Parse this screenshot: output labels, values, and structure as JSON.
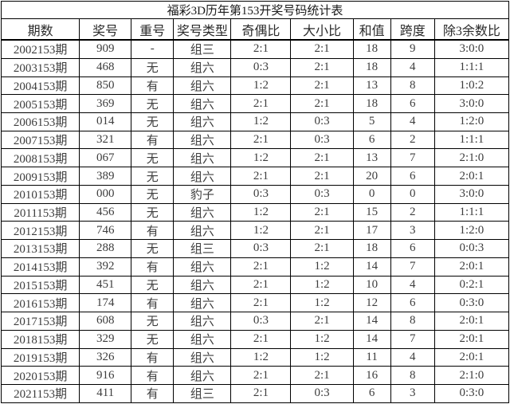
{
  "title": "福彩3D历年第153开奖号码统计表",
  "colors": {
    "highlight_red": "#ff3333",
    "text": "#3d3d3d",
    "border": "#000000",
    "background": "#ffffff"
  },
  "table": {
    "headers": [
      "期数",
      "奖号",
      "重号",
      "奖号类型",
      "奇偶比",
      "大小比",
      "和值",
      "跨度",
      "除3余数比"
    ],
    "rows": [
      {
        "cells": [
          "2002153期",
          "909",
          "-",
          "组三",
          "2:1",
          "2:1",
          "18",
          "9",
          "3:0:0"
        ],
        "red": [
          8
        ]
      },
      {
        "cells": [
          "2003153期",
          "468",
          "无",
          "组六",
          "0:3",
          "2:1",
          "18",
          "4",
          "1:1:1"
        ],
        "red": [
          4
        ]
      },
      {
        "cells": [
          "2004153期",
          "850",
          "有",
          "组六",
          "1:2",
          "2:1",
          "13",
          "8",
          "1:0:2"
        ],
        "red": [
          8
        ]
      },
      {
        "cells": [
          "2005153期",
          "369",
          "无",
          "组六",
          "2:1",
          "2:1",
          "18",
          "6",
          "3:0:0"
        ],
        "red": [
          8
        ]
      },
      {
        "cells": [
          "2006153期",
          "014",
          "无",
          "组六",
          "1:2",
          "0:3",
          "5",
          "4",
          "1:2:0"
        ],
        "red": [
          5,
          8
        ]
      },
      {
        "cells": [
          "2007153期",
          "321",
          "有",
          "组六",
          "2:1",
          "0:3",
          "6",
          "2",
          "1:1:1"
        ],
        "red": [
          5
        ]
      },
      {
        "cells": [
          "2008153期",
          "067",
          "无",
          "组六",
          "1:2",
          "2:1",
          "13",
          "7",
          "2:1:0"
        ],
        "red": [
          8
        ]
      },
      {
        "cells": [
          "2009153期",
          "389",
          "无",
          "组六",
          "2:1",
          "2:1",
          "20",
          "6",
          "2:0:1"
        ],
        "red": [
          8
        ]
      },
      {
        "cells": [
          "2010153期",
          "000",
          "无",
          "豹子",
          "0:3",
          "0:3",
          "0",
          "0",
          "3:0:0"
        ],
        "red": [
          4,
          5,
          8
        ]
      },
      {
        "cells": [
          "2011153期",
          "456",
          "无",
          "组六",
          "1:2",
          "2:1",
          "15",
          "2",
          "1:1:1"
        ],
        "red": []
      },
      {
        "cells": [
          "2012153期",
          "746",
          "有",
          "组六",
          "1:2",
          "2:1",
          "17",
          "3",
          "1:2:0"
        ],
        "red": [
          8
        ]
      },
      {
        "cells": [
          "2013153期",
          "288",
          "无",
          "组三",
          "0:3",
          "2:1",
          "18",
          "6",
          "0:0:3"
        ],
        "red": [
          4,
          8
        ]
      },
      {
        "cells": [
          "2014153期",
          "392",
          "有",
          "组六",
          "2:1",
          "1:2",
          "14",
          "7",
          "2:0:1"
        ],
        "red": [
          8
        ]
      },
      {
        "cells": [
          "2015153期",
          "451",
          "无",
          "组六",
          "2:1",
          "1:2",
          "10",
          "4",
          "0:2:1"
        ],
        "red": [
          8
        ]
      },
      {
        "cells": [
          "2016153期",
          "174",
          "有",
          "组六",
          "2:1",
          "1:2",
          "12",
          "6",
          "0:3:0"
        ],
        "red": [
          8
        ]
      },
      {
        "cells": [
          "2017153期",
          "608",
          "无",
          "组六",
          "0:3",
          "2:1",
          "14",
          "8",
          "2:0:1"
        ],
        "red": [
          4,
          8
        ]
      },
      {
        "cells": [
          "2018153期",
          "329",
          "无",
          "组六",
          "2:1",
          "1:2",
          "14",
          "7",
          "2:0:1"
        ],
        "red": [
          8
        ]
      },
      {
        "cells": [
          "2019153期",
          "326",
          "有",
          "组六",
          "1:2",
          "1:2",
          "11",
          "4",
          "2:0:1"
        ],
        "red": [
          8
        ]
      },
      {
        "cells": [
          "2020153期",
          "916",
          "有",
          "组六",
          "2:1",
          "2:1",
          "16",
          "8",
          "2:1:0"
        ],
        "red": [
          8
        ]
      },
      {
        "cells": [
          "2021153期",
          "411",
          "有",
          "组三",
          "2:1",
          "0:3",
          "6",
          "3",
          "0:3:0"
        ],
        "red": [
          5,
          8
        ]
      }
    ]
  }
}
